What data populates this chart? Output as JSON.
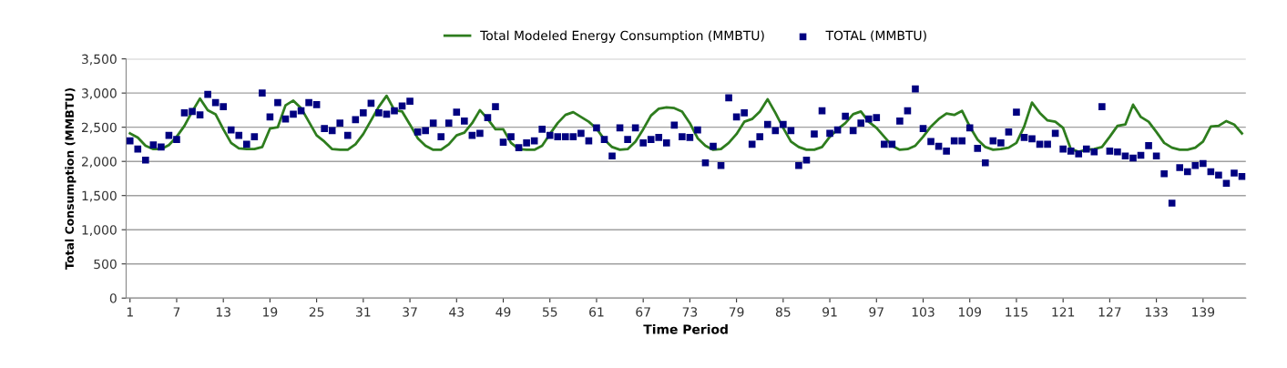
{
  "chart_data": {
    "type": "line",
    "xlabel": "Time Period",
    "ylabel": "Total Consumption (MMBTU)",
    "x": [
      1,
      2,
      3,
      4,
      5,
      6,
      7,
      8,
      9,
      10,
      11,
      12,
      13,
      14,
      15,
      16,
      17,
      18,
      19,
      20,
      21,
      22,
      23,
      24,
      25,
      26,
      27,
      28,
      29,
      30,
      31,
      32,
      33,
      34,
      35,
      36,
      37,
      38,
      39,
      40,
      41,
      42,
      43,
      44,
      45,
      46,
      47,
      48,
      49,
      50,
      51,
      52,
      53,
      54,
      55,
      56,
      57,
      58,
      59,
      60,
      61,
      62,
      63,
      64,
      65,
      66,
      67,
      68,
      69,
      70,
      71,
      72,
      73,
      74,
      75,
      76,
      77,
      78,
      79,
      80,
      81,
      82,
      83,
      84,
      85,
      86,
      87,
      88,
      89,
      90,
      91,
      92,
      93,
      94,
      95,
      96,
      97,
      98,
      99,
      100,
      101,
      102,
      103,
      104,
      105,
      106,
      107,
      108,
      109,
      110,
      111,
      112,
      113,
      114,
      115,
      116,
      117,
      118,
      119,
      120,
      121,
      122,
      123,
      124,
      125,
      126,
      127,
      128,
      129,
      130,
      131,
      132,
      133,
      134,
      135,
      136,
      137,
      138,
      139,
      140,
      141,
      142,
      143,
      144
    ],
    "series": [
      {
        "name": "Total Modeled Energy Consumption (MMBTU)",
        "color": "#2e7d1e",
        "marker": "none",
        "line_style": "solid",
        "values": [
          2410,
          2350,
          2230,
          2180,
          2180,
          2240,
          2360,
          2520,
          2730,
          2920,
          2750,
          2690,
          2470,
          2270,
          2190,
          2180,
          2180,
          2210,
          2480,
          2500,
          2820,
          2890,
          2780,
          2580,
          2380,
          2290,
          2180,
          2170,
          2170,
          2250,
          2400,
          2600,
          2800,
          2960,
          2750,
          2730,
          2540,
          2340,
          2230,
          2170,
          2170,
          2250,
          2380,
          2420,
          2560,
          2750,
          2620,
          2470,
          2470,
          2270,
          2180,
          2170,
          2170,
          2230,
          2400,
          2560,
          2680,
          2720,
          2650,
          2580,
          2480,
          2320,
          2210,
          2170,
          2180,
          2290,
          2470,
          2670,
          2770,
          2790,
          2780,
          2730,
          2560,
          2340,
          2230,
          2170,
          2180,
          2270,
          2400,
          2580,
          2620,
          2730,
          2910,
          2710,
          2490,
          2290,
          2210,
          2170,
          2170,
          2210,
          2360,
          2470,
          2560,
          2690,
          2730,
          2580,
          2490,
          2360,
          2230,
          2170,
          2180,
          2230,
          2360,
          2510,
          2620,
          2700,
          2680,
          2740,
          2510,
          2320,
          2210,
          2170,
          2180,
          2200,
          2270,
          2510,
          2860,
          2710,
          2600,
          2580,
          2490,
          2180,
          2140,
          2170,
          2180,
          2210,
          2360,
          2520,
          2540,
          2830,
          2650,
          2580,
          2430,
          2270,
          2200,
          2170,
          2170,
          2200,
          2290,
          2510,
          2520,
          2590,
          2540,
          2410
        ]
      },
      {
        "name": "TOTAL (MMBTU)",
        "type": "scatter",
        "color": "#000080",
        "marker": "square",
        "values": [
          2300,
          2180,
          2020,
          2240,
          2210,
          2380,
          2320,
          2710,
          2730,
          2680,
          2980,
          2860,
          2800,
          2460,
          2380,
          2250,
          2360,
          3000,
          2650,
          2860,
          2620,
          2690,
          2740,
          2860,
          2830,
          2480,
          2450,
          2560,
          2380,
          2610,
          2710,
          2850,
          2710,
          2690,
          2740,
          2810,
          2880,
          2430,
          2450,
          2560,
          2360,
          2560,
          2720,
          2590,
          2380,
          2410,
          2640,
          2800,
          2280,
          2360,
          2200,
          2270,
          2300,
          2470,
          2380,
          2360,
          2360,
          2360,
          2410,
          2300,
          2490,
          2320,
          2080,
          2490,
          2320,
          2490,
          2270,
          2320,
          2350,
          2270,
          2530,
          2360,
          2350,
          2460,
          1980,
          2220,
          1940,
          2930,
          2650,
          2710,
          2250,
          2360,
          2540,
          2450,
          2540,
          2450,
          1940,
          2020,
          2400,
          2740,
          2410,
          2460,
          2660,
          2450,
          2560,
          2620,
          2640,
          2250,
          2250,
          2590,
          2740,
          3060,
          2480,
          2290,
          2220,
          2150,
          2300,
          2300,
          2490,
          2190,
          1980,
          2300,
          2270,
          2430,
          2720,
          2350,
          2330,
          2250,
          2250,
          2410,
          2180,
          2150,
          2110,
          2180,
          2140,
          2800,
          2150,
          2140,
          2080,
          2050,
          2090,
          2230,
          2080,
          1820,
          1390,
          1910,
          1850,
          1940,
          1970,
          1850,
          1800,
          1680,
          1830,
          1780
        ]
      }
    ],
    "xlim": [
      0.5,
      144.5
    ],
    "xticks": [
      1,
      7,
      13,
      19,
      25,
      31,
      37,
      43,
      49,
      55,
      61,
      67,
      73,
      79,
      85,
      91,
      97,
      103,
      109,
      115,
      121,
      127,
      133,
      139
    ],
    "ylim": [
      0,
      3500
    ],
    "yticks": [
      0,
      500,
      {
        "value": 1000,
        "label": "1,000"
      },
      {
        "value": 1500,
        "label": "1,500"
      },
      {
        "value": 2000,
        "label": "2,000"
      },
      {
        "value": 2500,
        "label": "2,500"
      },
      {
        "value": 3000,
        "label": "3,000"
      },
      {
        "value": 3500,
        "label": "3,500"
      }
    ],
    "grid": "y",
    "legend": "top"
  }
}
